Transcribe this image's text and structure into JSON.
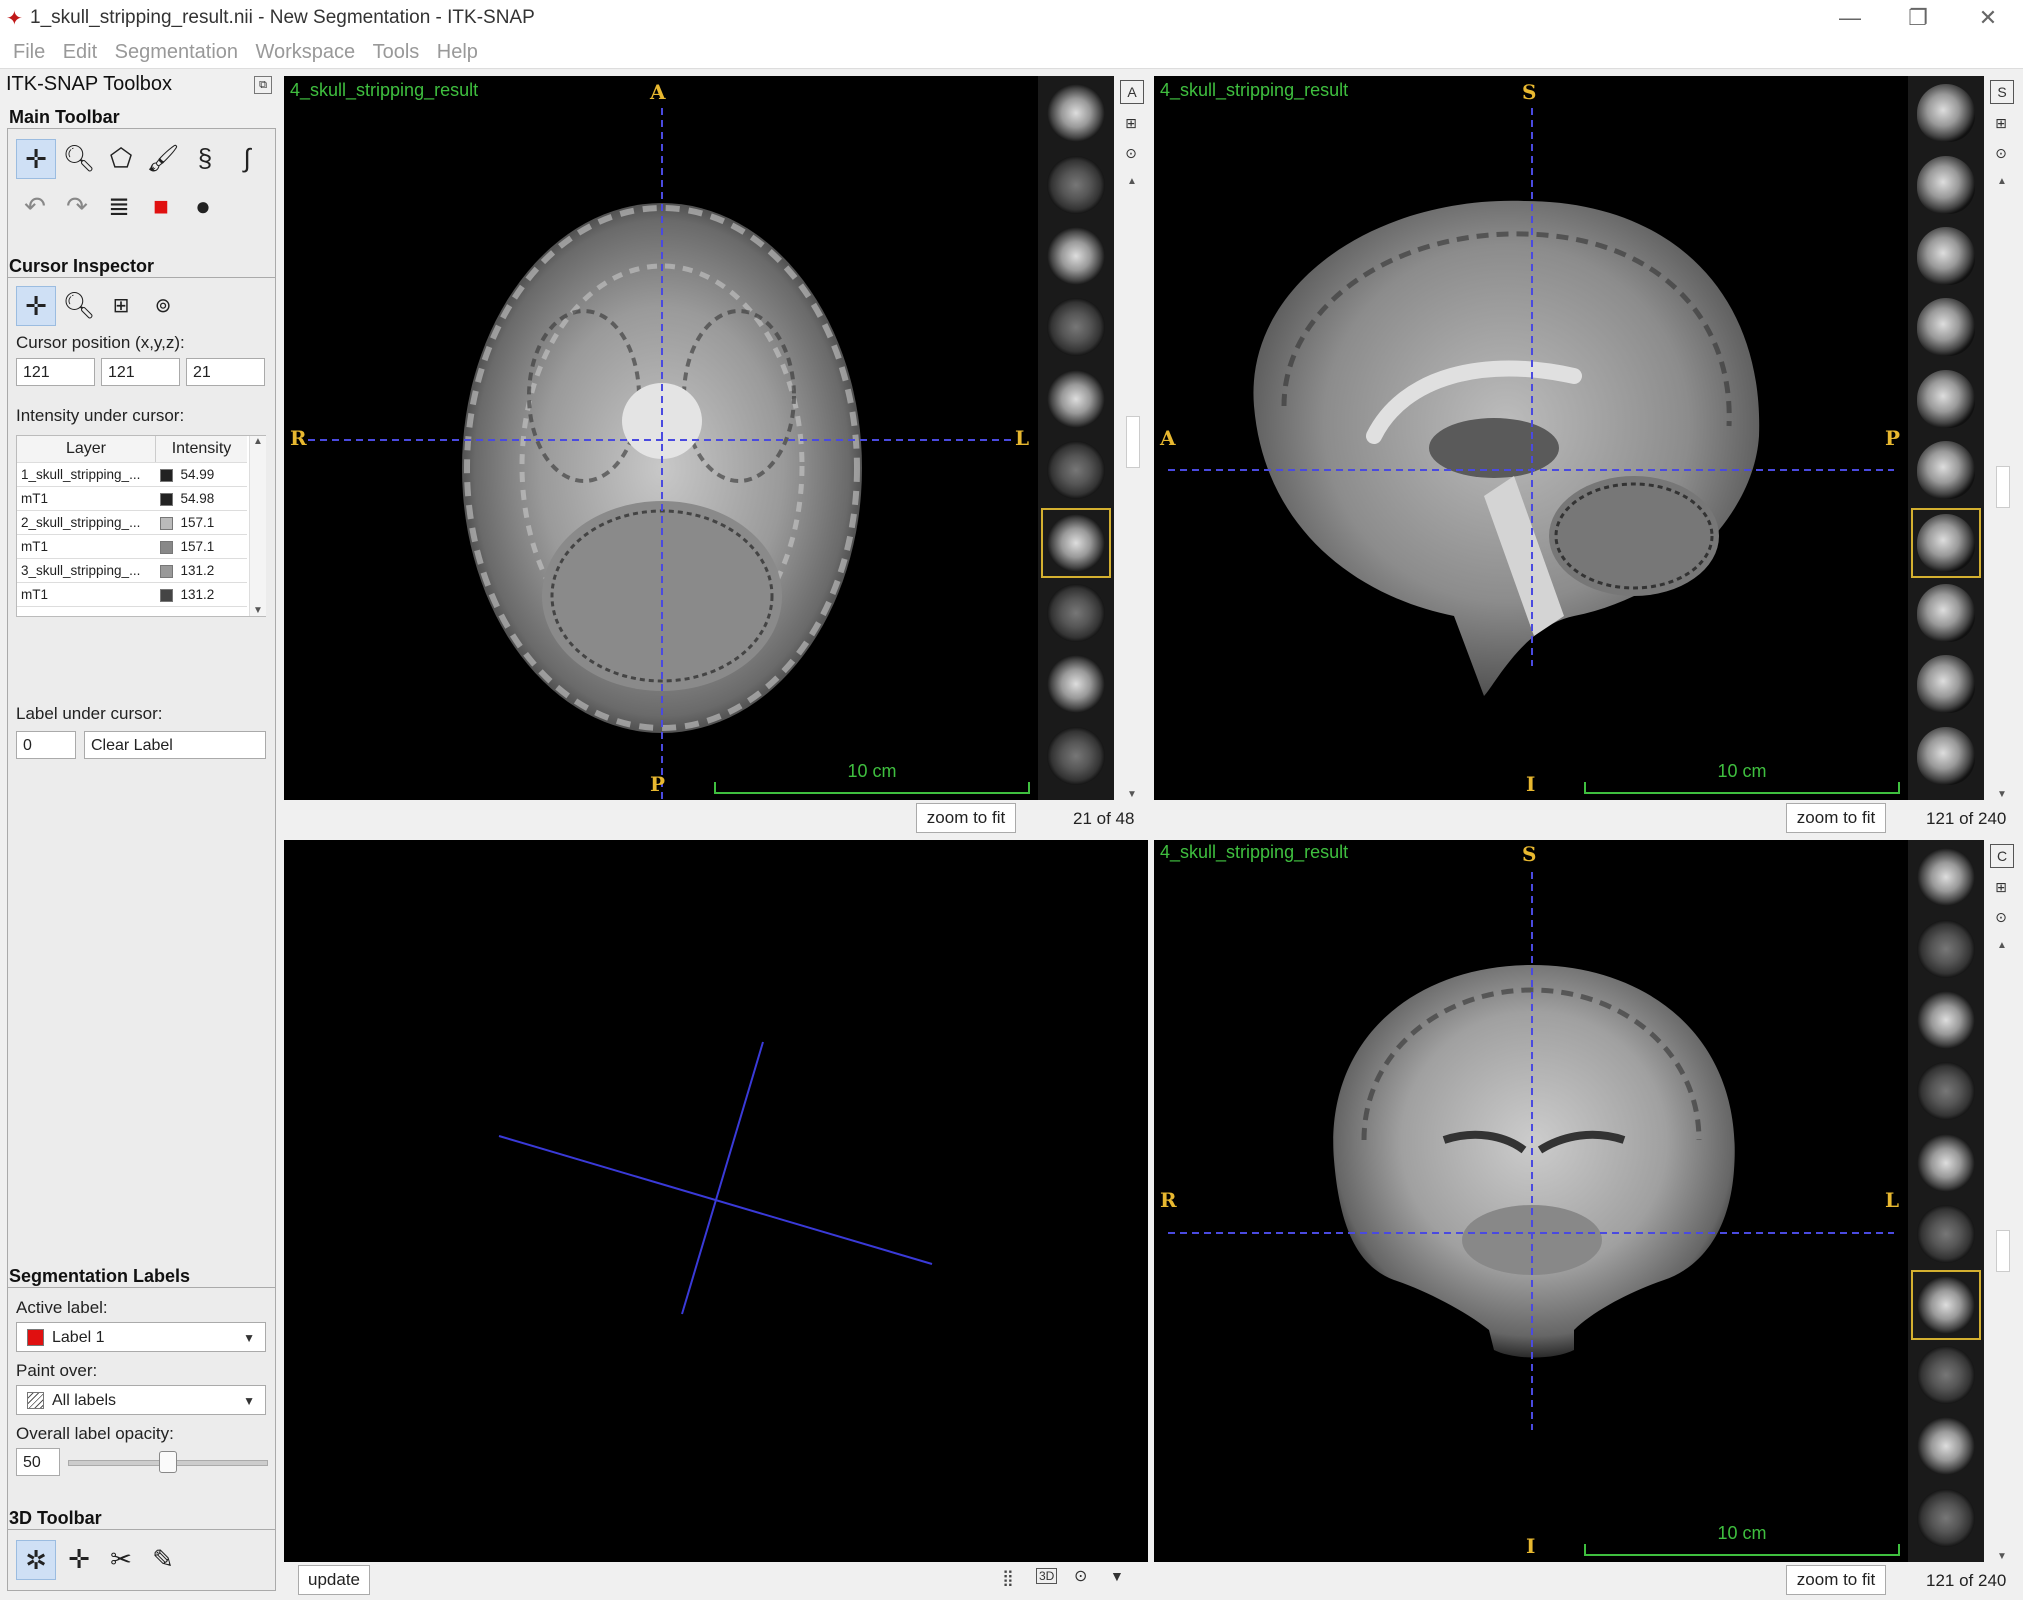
{
  "window": {
    "title": "1_skull_stripping_result.nii - New Segmentation - ITK-SNAP",
    "minimize": "—",
    "restore": "❐",
    "close": "✕"
  },
  "menu": [
    "File",
    "Edit",
    "Segmentation",
    "Workspace",
    "Tools",
    "Help"
  ],
  "toolbox": {
    "title": "ITK-SNAP Toolbox",
    "main_toolbar": "Main Toolbar",
    "cursor_inspector": "Cursor Inspector",
    "cursor_position_label": "Cursor position (x,y,z):",
    "cursor_x": "121",
    "cursor_y": "121",
    "cursor_z": "21",
    "intensity_label": "Intensity under cursor:",
    "table_headers": {
      "layer": "Layer",
      "intensity": "Intensity"
    },
    "layers": [
      {
        "name": "1_skull_stripping_...",
        "value": "54.99",
        "swatch": "#222222"
      },
      {
        "name": "mT1",
        "value": "54.98",
        "swatch": "#222222"
      },
      {
        "name": "2_skull_stripping_...",
        "value": "157.1",
        "swatch": "#bbbbbb"
      },
      {
        "name": "mT1",
        "value": "157.1",
        "swatch": "#888888"
      },
      {
        "name": "3_skull_stripping_...",
        "value": "131.2",
        "swatch": "#999999"
      },
      {
        "name": "mT1",
        "value": "131.2",
        "swatch": "#444444"
      }
    ],
    "label_under_cursor": "Label under cursor:",
    "label_id": "0",
    "label_name": "Clear Label",
    "seg_labels": "Segmentation Labels",
    "active_label_caption": "Active label:",
    "active_label": "Label 1",
    "active_label_color": "#e01010",
    "paint_over_caption": "Paint over:",
    "paint_over": "All labels",
    "opacity_caption": "Overall label opacity:",
    "opacity_value": "50",
    "opacity_fraction": 0.5,
    "toolbar3d": "3D Toolbar"
  },
  "views": {
    "axial": {
      "layer": "4_skull_stripping_result",
      "top": "A",
      "bottom": "P",
      "left": "R",
      "right": "L",
      "scale": "10 cm",
      "zoom": "zoom to fit",
      "slice": "21 of 48",
      "side_top": "A"
    },
    "sagittal": {
      "layer": "4_skull_stripping_result",
      "top": "S",
      "bottom": "I",
      "left": "A",
      "right": "P",
      "scale": "10 cm",
      "zoom": "zoom to fit",
      "slice": "121 of 240",
      "side_top": "S"
    },
    "coronal": {
      "layer": "4_skull_stripping_result",
      "top": "S",
      "bottom": "I",
      "left": "R",
      "right": "L",
      "scale": "10 cm",
      "zoom": "zoom to fit",
      "slice": "121 of 240",
      "side_top": "C"
    },
    "three_d": {
      "update": "update",
      "mode": "3D"
    }
  }
}
